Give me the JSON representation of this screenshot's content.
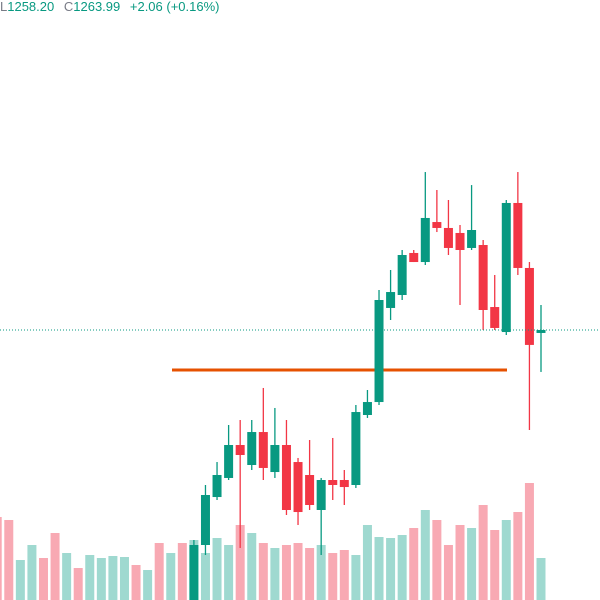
{
  "chart_data": {
    "type": "candlestick",
    "header": {
      "low_label": "L",
      "low": "1258.20",
      "close_label": "C",
      "close": "1263.99",
      "change": "+2.06 (+0.16%)"
    },
    "ylim": [
      1226.73,
      1309.53
    ],
    "up_color": "#089981",
    "down_color": "#f23645",
    "level": 1258.47,
    "level_color": "#e65100",
    "candles": [
      null,
      null,
      null,
      null,
      null,
      null,
      null,
      null,
      null,
      null,
      null,
      null,
      null,
      null,
      null,
      null,
      null,
      {
        "o": 1226.73,
        "h": 1235.01,
        "l": 1225.5,
        "c": 1234.32
      },
      {
        "o": 1234.32,
        "h": 1242.6,
        "l": 1232.94,
        "c": 1241.22
      },
      {
        "o": 1240.94,
        "h": 1245.77,
        "l": 1240.53,
        "c": 1243.98
      },
      {
        "o": 1243.57,
        "h": 1250.88,
        "l": 1243.29,
        "c": 1248.12
      },
      {
        "o": 1248.12,
        "h": 1251.57,
        "l": 1233.91,
        "c": 1246.74
      },
      {
        "o": 1245.36,
        "h": 1251.57,
        "l": 1244.67,
        "c": 1249.91
      },
      {
        "o": 1249.91,
        "h": 1255.99,
        "l": 1243.29,
        "c": 1244.95
      },
      {
        "o": 1244.39,
        "h": 1253.23,
        "l": 1243.57,
        "c": 1248.12
      },
      {
        "o": 1248.12,
        "h": 1251.57,
        "l": 1238.46,
        "c": 1239.15
      },
      {
        "o": 1245.77,
        "h": 1246.33,
        "l": 1237.08,
        "c": 1238.87
      },
      {
        "o": 1243.98,
        "h": 1248.81,
        "l": 1239.15,
        "c": 1239.84
      },
      {
        "o": 1239.15,
        "h": 1243.57,
        "l": 1232.94,
        "c": 1243.29
      },
      {
        "o": 1243.29,
        "h": 1249.09,
        "l": 1240.53,
        "c": 1242.6
      },
      {
        "o": 1243.29,
        "h": 1244.67,
        "l": 1239.84,
        "c": 1242.32
      },
      {
        "o": 1242.6,
        "h": 1253.64,
        "l": 1242.19,
        "c": 1252.67
      },
      {
        "o": 1252.26,
        "h": 1255.71,
        "l": 1251.85,
        "c": 1254.05
      },
      {
        "o": 1254.05,
        "h": 1269.51,
        "l": 1253.64,
        "c": 1268.13
      },
      {
        "o": 1267.03,
        "h": 1272.27,
        "l": 1265.37,
        "c": 1269.23
      },
      {
        "o": 1268.82,
        "h": 1275.03,
        "l": 1268.13,
        "c": 1274.34
      },
      {
        "o": 1274.62,
        "h": 1275.03,
        "l": 1273.37,
        "c": 1273.37
      },
      {
        "o": 1273.37,
        "h": 1285.79,
        "l": 1272.96,
        "c": 1279.45
      },
      {
        "o": 1278.89,
        "h": 1283.31,
        "l": 1277.51,
        "c": 1278.07
      },
      {
        "o": 1278.07,
        "h": 1281.93,
        "l": 1274.34,
        "c": 1275.31
      },
      {
        "o": 1277.38,
        "h": 1278.48,
        "l": 1267.44,
        "c": 1275.03
      },
      {
        "o": 1275.31,
        "h": 1283.99,
        "l": 1275.03,
        "c": 1277.79
      },
      {
        "o": 1275.72,
        "h": 1276.41,
        "l": 1263.99,
        "c": 1266.75
      },
      {
        "o": 1267.16,
        "h": 1271.58,
        "l": 1263.99,
        "c": 1264.27
      },
      {
        "o": 1263.71,
        "h": 1281.93,
        "l": 1263.3,
        "c": 1281.52
      },
      {
        "o": 1281.52,
        "h": 1285.79,
        "l": 1271.58,
        "c": 1272.55
      },
      {
        "o": 1272.55,
        "h": 1273.37,
        "l": 1250.19,
        "c": 1261.93
      },
      {
        "o": 1263.58,
        "h": 1267.44,
        "l": 1258.2,
        "c": 1263.99
      }
    ],
    "volume_lim": [
      0,
      120
    ],
    "volume": [
      83,
      80,
      40,
      55,
      42,
      67,
      47,
      32,
      45,
      42,
      44,
      43,
      35,
      30,
      57,
      47,
      57,
      60,
      47,
      62,
      55,
      75,
      67,
      57,
      52,
      55,
      57,
      52,
      55,
      47,
      50,
      45,
      75,
      63,
      62,
      65,
      72,
      90,
      80,
      55,
      75,
      72,
      95,
      70,
      80,
      88,
      117,
      42
    ],
    "volume_up_color": "#9fd9d0",
    "volume_down_color": "#f8a9b3",
    "volume_up": [
      false,
      false,
      true,
      true,
      false,
      false,
      true,
      false,
      true,
      true,
      true,
      true,
      false,
      true,
      false,
      true,
      false
    ]
  }
}
